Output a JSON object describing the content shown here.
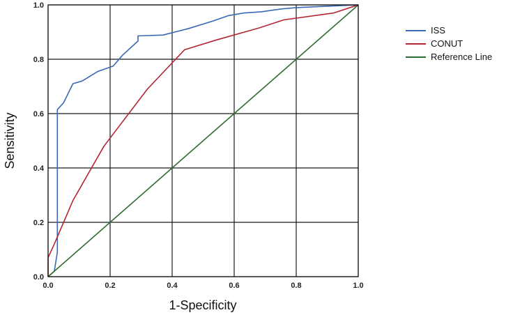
{
  "chart_data": {
    "type": "line",
    "xlabel": "1-Specificity",
    "ylabel": "Sensitivity",
    "xlim": [
      0,
      1
    ],
    "ylim": [
      0,
      1
    ],
    "x_ticks": [
      "0.0",
      "0.2",
      "0.4",
      "0.6",
      "0.8",
      "1.0"
    ],
    "y_ticks": [
      "0.0",
      "0.2",
      "0.4",
      "0.6",
      "0.8",
      "1.0"
    ],
    "grid": true,
    "legend_position": "right",
    "series": [
      {
        "name": "ISS",
        "color": "#3a68b5",
        "points": [
          [
            0,
            0
          ],
          [
            0.02,
            0.02
          ],
          [
            0.03,
            0.09
          ],
          [
            0.03,
            0.615
          ],
          [
            0.05,
            0.64
          ],
          [
            0.08,
            0.71
          ],
          [
            0.11,
            0.72
          ],
          [
            0.16,
            0.755
          ],
          [
            0.21,
            0.775
          ],
          [
            0.24,
            0.815
          ],
          [
            0.29,
            0.867
          ],
          [
            0.29,
            0.886
          ],
          [
            0.37,
            0.889
          ],
          [
            0.45,
            0.912
          ],
          [
            0.53,
            0.94
          ],
          [
            0.58,
            0.96
          ],
          [
            0.63,
            0.97
          ],
          [
            0.69,
            0.975
          ],
          [
            0.75,
            0.985
          ],
          [
            0.8,
            0.99
          ],
          [
            0.9,
            0.995
          ],
          [
            1,
            1
          ]
        ]
      },
      {
        "name": "CONUT",
        "color": "#b22533",
        "points": [
          [
            0,
            0
          ],
          [
            0,
            0.07
          ],
          [
            0.02,
            0.12
          ],
          [
            0.08,
            0.28
          ],
          [
            0.18,
            0.48
          ],
          [
            0.32,
            0.69
          ],
          [
            0.44,
            0.835
          ],
          [
            0.54,
            0.87
          ],
          [
            0.68,
            0.915
          ],
          [
            0.76,
            0.945
          ],
          [
            0.92,
            0.97
          ],
          [
            1,
            1
          ]
        ]
      },
      {
        "name": "Reference Line",
        "color": "#2e6b30",
        "points": [
          [
            0,
            0
          ],
          [
            1,
            1
          ]
        ]
      }
    ]
  }
}
